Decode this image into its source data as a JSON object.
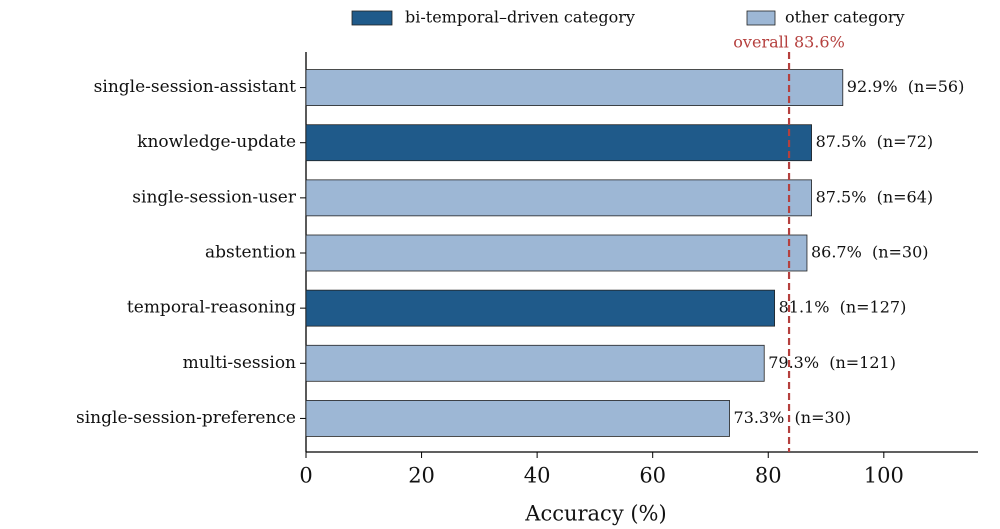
{
  "chart_data": {
    "type": "bar",
    "orientation": "horizontal",
    "categories": [
      "single-session-assistant",
      "knowledge-update",
      "single-session-user",
      "abstention",
      "temporal-reasoning",
      "multi-session",
      "single-session-preference"
    ],
    "values": [
      92.9,
      87.5,
      87.5,
      86.7,
      81.1,
      79.3,
      73.3
    ],
    "value_labels": [
      "92.9%  (n=56)",
      "87.5%  (n=72)",
      "87.5%  (n=64)",
      "86.7%  (n=30)",
      "81.1%  (n=127)",
      "79.3%  (n=121)",
      "73.3%  (n=30)"
    ],
    "colors": [
      "#9db7d5",
      "#1f5a8a",
      "#9db7d5",
      "#9db7d5",
      "#1f5a8a",
      "#9db7d5",
      "#9db7d5"
    ],
    "legend": [
      {
        "name": "bi-temporal–driven category",
        "color": "#1f5a8a"
      },
      {
        "name": "other category",
        "color": "#9db7d5"
      }
    ],
    "xlabel": "Accuracy (%)",
    "xlim": [
      0,
      116.3
    ],
    "xticks": [
      0,
      20,
      40,
      60,
      80,
      100
    ],
    "reference_line": {
      "value": 83.6,
      "label": "overall 83.6%",
      "color": "#b5403e"
    },
    "grid": false
  }
}
